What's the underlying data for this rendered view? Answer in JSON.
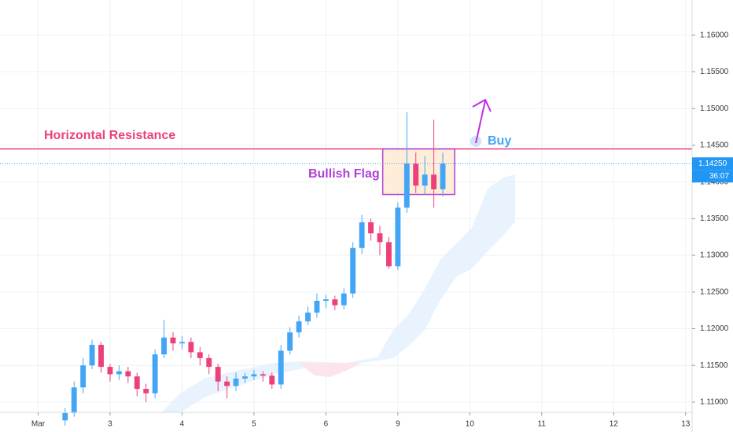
{
  "chart_data": {
    "type": "candlestick",
    "x": [
      0.375,
      0.5,
      0.625,
      0.75,
      0.875,
      1,
      1.125,
      1.25,
      1.375,
      1.5,
      1.625,
      1.75,
      1.875,
      2,
      2.125,
      2.25,
      2.375,
      2.5,
      2.625,
      2.75,
      2.875,
      3,
      3.125,
      3.25,
      3.375,
      3.5,
      3.625,
      3.75,
      3.875,
      4,
      4.125,
      4.25,
      4.375,
      4.5,
      4.625,
      4.75,
      4.875,
      5,
      5.125,
      5.25,
      5.375,
      5.5,
      5.625
    ],
    "open": [
      1.1075,
      1.1085,
      1.112,
      1.115,
      1.1178,
      1.1148,
      1.1138,
      1.1142,
      1.1135,
      1.1118,
      1.1112,
      1.1165,
      1.1188,
      1.118,
      1.1182,
      1.1168,
      1.116,
      1.1148,
      1.1128,
      1.1122,
      1.1132,
      1.1135,
      1.1138,
      1.1136,
      1.1124,
      1.117,
      1.1195,
      1.121,
      1.1222,
      1.1238,
      1.124,
      1.1232,
      1.1248,
      1.131,
      1.1345,
      1.133,
      1.1318,
      1.1285,
      1.1365,
      1.1425,
      1.1395,
      1.141,
      1.139
    ],
    "high": [
      1.1092,
      1.1128,
      1.116,
      1.1185,
      1.1182,
      1.1152,
      1.115,
      1.1148,
      1.114,
      1.1125,
      1.1172,
      1.1212,
      1.1195,
      1.119,
      1.1188,
      1.1175,
      1.1165,
      1.1152,
      1.1135,
      1.114,
      1.114,
      1.1144,
      1.1142,
      1.114,
      1.1178,
      1.1202,
      1.1218,
      1.123,
      1.1248,
      1.1246,
      1.1245,
      1.1255,
      1.1318,
      1.1355,
      1.135,
      1.134,
      1.1325,
      1.1372,
      1.1495,
      1.144,
      1.1435,
      1.1485,
      1.144
    ],
    "low": [
      1.1068,
      1.108,
      1.1112,
      1.1145,
      1.114,
      1.1128,
      1.113,
      1.1126,
      1.1108,
      1.11,
      1.1105,
      1.116,
      1.117,
      1.1172,
      1.116,
      1.115,
      1.1138,
      1.1115,
      1.1105,
      1.1115,
      1.1126,
      1.113,
      1.1128,
      1.1118,
      1.1118,
      1.1165,
      1.1188,
      1.1205,
      1.1215,
      1.1228,
      1.1225,
      1.1226,
      1.1242,
      1.1302,
      1.132,
      1.13,
      1.1282,
      1.128,
      1.1358,
      1.1385,
      1.1382,
      1.1365,
      1.138
    ],
    "close": [
      1.1085,
      1.112,
      1.115,
      1.1178,
      1.1148,
      1.1138,
      1.1142,
      1.1135,
      1.1118,
      1.1112,
      1.1165,
      1.1188,
      1.118,
      1.1182,
      1.1168,
      1.116,
      1.1148,
      1.1128,
      1.1122,
      1.1132,
      1.1135,
      1.1138,
      1.1136,
      1.1124,
      1.117,
      1.1195,
      1.121,
      1.1222,
      1.1238,
      1.124,
      1.1232,
      1.1248,
      1.131,
      1.1345,
      1.133,
      1.1318,
      1.1285,
      1.1365,
      1.1425,
      1.1395,
      1.141,
      1.139,
      1.1425
    ],
    "up_color": "#42a5f5",
    "down_color": "#ec407a",
    "xlim": [
      -0.53,
      9.09
    ],
    "ylim": [
      1.1086,
      1.1648
    ],
    "xticks": [
      {
        "value": 0,
        "label": "Mar"
      },
      {
        "value": 1,
        "label": "3"
      },
      {
        "value": 2,
        "label": "4"
      },
      {
        "value": 3,
        "label": "5"
      },
      {
        "value": 4,
        "label": "6"
      },
      {
        "value": 5,
        "label": "9"
      },
      {
        "value": 6,
        "label": "10"
      },
      {
        "value": 7,
        "label": "11"
      },
      {
        "value": 8,
        "label": "12"
      },
      {
        "value": 9,
        "label": "13"
      }
    ],
    "yticks": [
      {
        "value": 1.11,
        "label": "1.11000"
      },
      {
        "value": 1.115,
        "label": "1.11500"
      },
      {
        "value": 1.12,
        "label": "1.12000"
      },
      {
        "value": 1.125,
        "label": "1.12500"
      },
      {
        "value": 1.13,
        "label": "1.13000"
      },
      {
        "value": 1.135,
        "label": "1.13500"
      },
      {
        "value": 1.14,
        "label": "1.14000"
      },
      {
        "value": 1.145,
        "label": "1.14500"
      },
      {
        "value": 1.15,
        "label": "1.15000"
      },
      {
        "value": 1.155,
        "label": "1.15500"
      },
      {
        "value": 1.16,
        "label": "1.16000"
      }
    ],
    "grid": true,
    "resistance": {
      "value": 1.1445,
      "label": "Horizontal Resistance",
      "color": "#ec407a"
    },
    "flag": {
      "x": [
        4.79,
        5.79
      ],
      "y": [
        1.1383,
        1.1445
      ],
      "label": "Bullish Flag",
      "color": "#b03fd6"
    },
    "buy_label": "Buy",
    "last_price": {
      "value": 1.1425,
      "label": "1.14250"
    },
    "countdown": "36:07"
  }
}
